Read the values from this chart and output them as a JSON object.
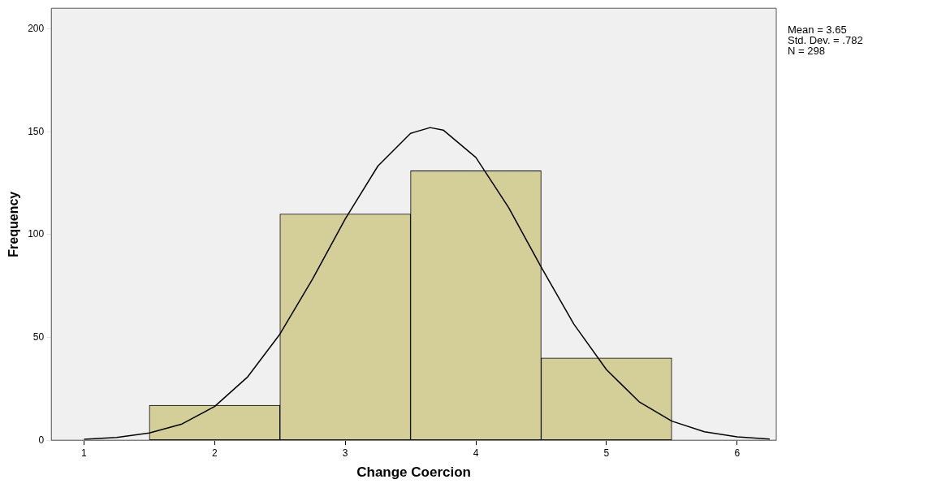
{
  "chart_data": {
    "type": "histogram",
    "xlabel": "Change Coercion",
    "ylabel": "Frequency",
    "bins": [
      1.5,
      2.5,
      3.5,
      4.5,
      5.5
    ],
    "values": [
      17,
      110,
      131,
      40
    ],
    "color": "#d4cf98",
    "series": [
      {
        "type": "line",
        "color": "#000000",
        "x": [
          1,
          1.25,
          1.5,
          1.75,
          2,
          2.25,
          2.5,
          2.75,
          3,
          3.25,
          3.5,
          3.65,
          3.75,
          4,
          4.25,
          4.5,
          4.75,
          5,
          5.25,
          5.5,
          5.75,
          6,
          6.25
        ],
        "values": [
          0.5,
          1.4,
          3.5,
          7.9,
          16.4,
          30.6,
          51.6,
          78.4,
          107.6,
          133.3,
          149.2,
          152,
          150.8,
          137.5,
          113.2,
          84.2,
          56.5,
          34.3,
          18.7,
          9.3,
          4.1,
          1.7,
          0.6
        ]
      }
    ],
    "xlim": [
      0.75,
      6.3
    ],
    "xticks": [
      1,
      2,
      3,
      4,
      5,
      6
    ],
    "ylim": [
      0,
      210
    ],
    "yticks": [
      0,
      50,
      100,
      150,
      200
    ],
    "annotations": [
      "Mean = 3.65",
      "Std. Dev. = .782",
      "N = 298"
    ],
    "grid": false,
    "legend": false,
    "marker": "none",
    "line_style": "solid"
  }
}
